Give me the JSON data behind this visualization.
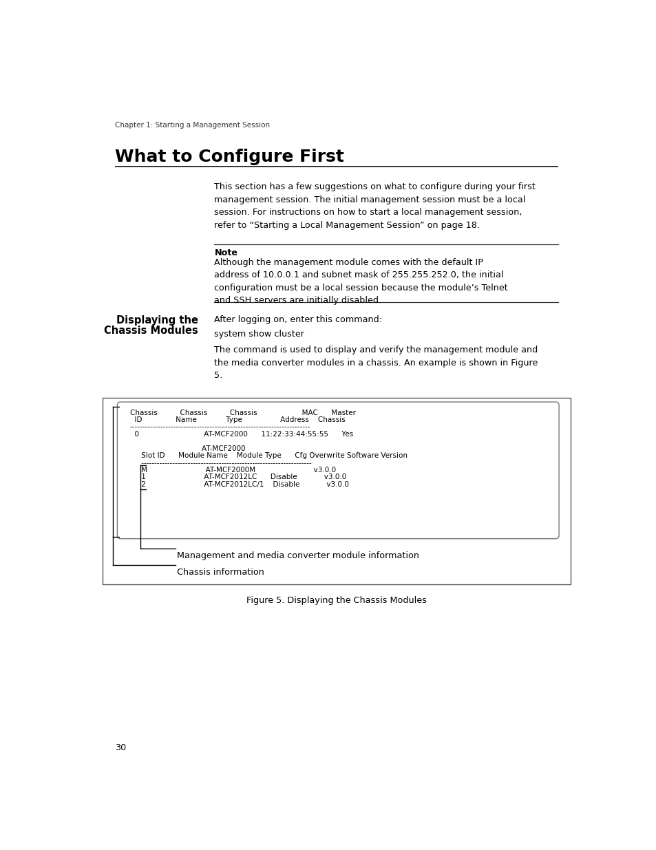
{
  "page_header": "Chapter 1: Starting a Management Session",
  "section_title": "What to Configure First",
  "body_text_1": "This section has a few suggestions on what to configure during your first\nmanagement session. The initial management session must be a local\nsession. For instructions on how to start a local management session,\nrefer to “Starting a Local Management Session” on page 18.",
  "note_label": "Note",
  "note_text": "Although the management module comes with the default IP\naddress of 10.0.0.1 and subnet mask of 255.255.252.0, the initial\nconfiguration must be a local session because the module’s Telnet\nand SSH servers are initially disabled.",
  "sidebar_title_line1": "Displaying the",
  "sidebar_title_line2": "Chassis Modules",
  "body_text_2": "After logging on, enter this command:",
  "command_text": "system show cluster",
  "body_text_3": "The command is used to display and verify the management module and\nthe media converter modules in a chassis. An example is shown in Figure\n5.",
  "figure_caption": "Figure 5. Displaying the Chassis Modules",
  "page_number": "30",
  "label_inner": "Management and media converter module information",
  "label_outer": "Chassis information",
  "bg_color": "#ffffff",
  "text_color": "#000000",
  "term_line1": "Chassis          Chassis          Chassis                    MAC      Master",
  "term_line2": "  ID               Name             Type                 Address    Chassis",
  "term_line3": "----------------------------------------------------------------------",
  "term_line4": "  0                             AT-MCF2000      11:22:33:44:55:55      Yes",
  "term_line5": "                                AT-MCF2000",
  "term_line6": "     Slot ID      Module Name    Module Type      Cfg Overwrite Software Version",
  "term_line7": "     ------------------------------------------------------------------",
  "term_line8": "     M                          AT-MCF2000M                          v3.0.0",
  "term_line9": "     1                          AT-MCF2012LC      Disable            v3.0.0",
  "term_line10": "     2                          AT-MCF2012LC/1    Disable            v3.0.0"
}
